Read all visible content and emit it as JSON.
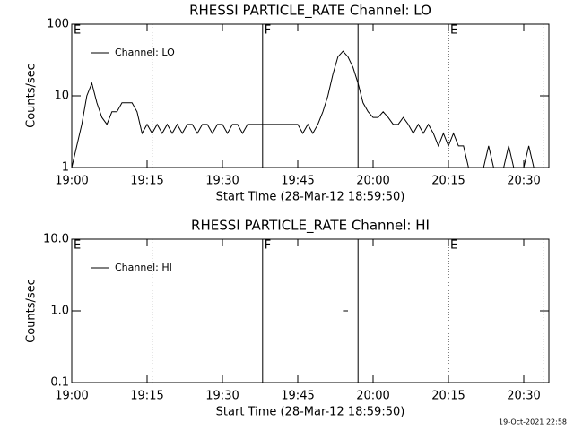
{
  "chart_data": [
    {
      "type": "line",
      "title": "RHESSI PARTICLE_RATE Channel: LO",
      "x_label": "Start Time (28-Mar-12 18:59:50)",
      "y_label": "Counts/sec",
      "y_scale": "log",
      "legend": "upper-left",
      "x": [
        "19:00",
        "19:01",
        "19:02",
        "19:03",
        "19:04",
        "19:05",
        "19:06",
        "19:07",
        "19:08",
        "19:09",
        "19:10",
        "19:11",
        "19:12",
        "19:13",
        "19:14",
        "19:15",
        "19:16",
        "19:17",
        "19:18",
        "19:19",
        "19:20",
        "19:21",
        "19:22",
        "19:23",
        "19:24",
        "19:25",
        "19:26",
        "19:27",
        "19:28",
        "19:29",
        "19:30",
        "19:31",
        "19:32",
        "19:33",
        "19:34",
        "19:35",
        "19:36",
        "19:37",
        "19:38",
        "19:39",
        "19:40",
        "19:41",
        "19:42",
        "19:43",
        "19:44",
        "19:45",
        "19:46",
        "19:47",
        "19:48",
        "19:49",
        "19:50",
        "19:51",
        "19:52",
        "19:53",
        "19:54",
        "19:55",
        "19:56",
        "19:57",
        "19:58",
        "19:59",
        "20:00",
        "20:01",
        "20:02",
        "20:03",
        "20:04",
        "20:05",
        "20:06",
        "20:07",
        "20:08",
        "20:09",
        "20:10",
        "20:11",
        "20:12",
        "20:13",
        "20:14",
        "20:15",
        "20:16",
        "20:17",
        "20:18",
        "20:19",
        "20:20",
        "20:21",
        "20:22",
        "20:23",
        "20:24",
        "20:25",
        "20:26",
        "20:27",
        "20:28",
        "20:29",
        "20:30",
        "20:31",
        "20:32",
        "20:33",
        "20:34"
      ],
      "series": [
        {
          "name": "Channel: LO",
          "color": "#000000",
          "values": [
            1,
            2,
            4,
            10,
            15,
            8,
            5,
            4,
            6,
            6,
            8,
            8,
            8,
            6,
            3,
            4,
            3,
            4,
            3,
            4,
            3,
            4,
            3,
            4,
            4,
            3,
            4,
            4,
            3,
            4,
            4,
            3,
            4,
            4,
            3,
            4,
            4,
            4,
            4,
            4,
            4,
            4,
            4,
            4,
            4,
            4,
            3,
            4,
            3,
            4,
            6,
            10,
            20,
            35,
            42,
            35,
            25,
            15,
            8,
            6,
            5,
            5,
            6,
            5,
            4,
            4,
            5,
            4,
            3,
            4,
            3,
            4,
            3,
            2,
            3,
            2,
            3,
            2,
            2,
            1,
            1,
            null,
            1,
            2,
            1,
            null,
            1,
            2,
            1,
            null,
            1,
            2,
            1,
            1,
            null
          ]
        }
      ],
      "xlim": [
        "19:00",
        "20:35"
      ],
      "xticks": [
        "19:00",
        "19:15",
        "19:30",
        "19:45",
        "20:00",
        "20:15",
        "20:30"
      ],
      "ylim": [
        1,
        100
      ],
      "yticks": [
        1,
        10,
        100
      ],
      "markers": [
        {
          "x": "19:00",
          "label": "E",
          "style": "dotted"
        },
        {
          "x": "19:16",
          "style": "dotted"
        },
        {
          "x": "19:38",
          "label": "F",
          "style": "solid"
        },
        {
          "x": "19:57",
          "style": "solid"
        },
        {
          "x": "20:15",
          "label": "E",
          "style": "dotted"
        },
        {
          "x": "20:34",
          "style": "dotted"
        }
      ]
    },
    {
      "type": "line",
      "title": "RHESSI PARTICLE_RATE Channel: HI",
      "x_label": "Start Time (28-Mar-12 18:59:50)",
      "y_label": "Counts/sec",
      "y_scale": "log",
      "legend": "upper-left",
      "x": [
        "19:54",
        "19:55"
      ],
      "series": [
        {
          "name": "Channel: HI",
          "color": "#000000",
          "values": [
            1,
            1
          ]
        }
      ],
      "xlim": [
        "19:00",
        "20:35"
      ],
      "xticks": [
        "19:00",
        "19:15",
        "19:30",
        "19:45",
        "20:00",
        "20:15",
        "20:30"
      ],
      "ylim": [
        0.1,
        10
      ],
      "yticks": [
        {
          "value": 0.1,
          "label": "0.1"
        },
        {
          "value": 1,
          "label": "1.0"
        },
        {
          "value": 10,
          "label": "10.0"
        }
      ],
      "markers": [
        {
          "x": "19:00",
          "label": "E",
          "style": "dotted"
        },
        {
          "x": "19:16",
          "style": "dotted"
        },
        {
          "x": "19:38",
          "label": "F",
          "style": "solid"
        },
        {
          "x": "19:57",
          "style": "solid"
        },
        {
          "x": "20:15",
          "label": "E",
          "style": "dotted"
        },
        {
          "x": "20:34",
          "style": "dotted"
        }
      ]
    }
  ],
  "footer": "19-Oct-2021 22:58"
}
